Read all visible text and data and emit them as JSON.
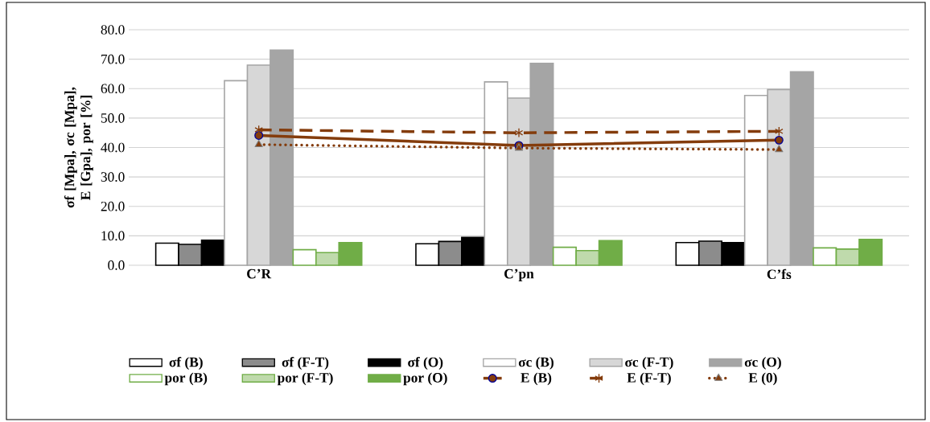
{
  "chart_data": {
    "type": "bar",
    "ylabel": "σf [Mpa], σc [Mpa], E [Gpa], por [%]",
    "categories": [
      "C’R",
      "C’pn",
      "C’fs"
    ],
    "series": [
      {
        "name": "σf (B)",
        "color": "#000000",
        "values": [
          7.5,
          7.3,
          7.7
        ]
      },
      {
        "name": "σf (F-T)",
        "color": "#000000",
        "values": [
          7.1,
          8.1,
          8.2
        ]
      },
      {
        "name": "σf (O)",
        "color": "#000000",
        "values": [
          8.5,
          9.5,
          7.7
        ]
      },
      {
        "name": "σc (B)",
        "color": "#a5a5a5",
        "values": [
          62.7,
          62.3,
          57.7
        ]
      },
      {
        "name": "σc (F-T)",
        "color": "#a5a5a5",
        "values": [
          68.0,
          56.8,
          59.7
        ]
      },
      {
        "name": "σc (O)",
        "color": "#a5a5a5",
        "values": [
          73.1,
          68.6,
          65.7
        ]
      },
      {
        "name": "por (B)",
        "color": "#70ad47",
        "values": [
          5.3,
          6.1,
          5.9
        ]
      },
      {
        "name": "por (F-T)",
        "color": "#70ad47",
        "values": [
          4.3,
          5.0,
          5.5
        ]
      },
      {
        "name": "por (O)",
        "color": "#70ad47",
        "values": [
          7.7,
          8.4,
          8.8
        ]
      },
      {
        "name": "E (B)",
        "type": "line",
        "color": "#843c0c",
        "marker": "circle",
        "line_style": "solid",
        "values": [
          44.1,
          40.7,
          42.5
        ]
      },
      {
        "name": "E (F-T)",
        "type": "line",
        "color": "#843c0c",
        "marker": "cross",
        "line_style": "dashed",
        "values": [
          46.0,
          45.0,
          45.5
        ]
      },
      {
        "name": "E (0)",
        "type": "line",
        "color": "#843c0c",
        "marker": "triangle",
        "line_style": "dotted",
        "values": [
          41.0,
          39.8,
          39.3
        ]
      }
    ],
    "ylim": [
      0,
      80
    ],
    "yticks": [
      {
        "value": 0,
        "label": "0.0"
      },
      {
        "value": 10,
        "label": "10.0"
      },
      {
        "value": 20,
        "label": "20.0"
      },
      {
        "value": 30,
        "label": "30.0"
      },
      {
        "value": 40,
        "label": "40.0"
      },
      {
        "value": 50,
        "label": "50.0"
      },
      {
        "value": 60,
        "label": "60.0"
      },
      {
        "value": 70,
        "label": "70.0"
      },
      {
        "value": 80,
        "label": "80.0"
      }
    ],
    "grid": "y",
    "legend": "bottom"
  }
}
